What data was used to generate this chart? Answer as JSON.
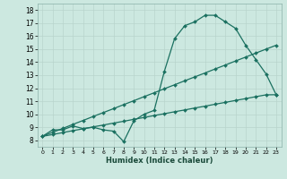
{
  "xlabel": "Humidex (Indice chaleur)",
  "bg_color": "#cce8e0",
  "grid_color": "#b8d4cc",
  "line_color": "#1a7060",
  "xlim": [
    -0.5,
    23.5
  ],
  "ylim": [
    7.5,
    18.5
  ],
  "xticks": [
    0,
    1,
    2,
    3,
    4,
    5,
    6,
    7,
    8,
    9,
    10,
    11,
    12,
    13,
    14,
    15,
    16,
    17,
    18,
    19,
    20,
    21,
    22,
    23
  ],
  "yticks": [
    8,
    9,
    10,
    11,
    12,
    13,
    14,
    15,
    16,
    17,
    18
  ],
  "line1_x": [
    0,
    1,
    2,
    3,
    4,
    5,
    6,
    7,
    8,
    9,
    10,
    11,
    12,
    13,
    14,
    15,
    16,
    17,
    18,
    19,
    20,
    21,
    22,
    23
  ],
  "line1_y": [
    8.3,
    8.8,
    8.8,
    9.1,
    8.9,
    9.0,
    8.8,
    8.7,
    7.9,
    9.5,
    10.0,
    10.3,
    13.3,
    15.8,
    16.8,
    17.1,
    17.6,
    17.6,
    17.1,
    16.6,
    15.3,
    14.2,
    13.1,
    11.5
  ],
  "line2_x": [
    0,
    1,
    2,
    3,
    4,
    5,
    6,
    7,
    8,
    9,
    10,
    11,
    12,
    13,
    14,
    15,
    16,
    17,
    18,
    19,
    20,
    21,
    22,
    23
  ],
  "line2_y": [
    8.3,
    8.61,
    8.91,
    9.22,
    9.52,
    9.83,
    10.13,
    10.43,
    10.74,
    11.04,
    11.35,
    11.65,
    11.96,
    12.26,
    12.57,
    12.87,
    13.17,
    13.48,
    13.78,
    14.09,
    14.39,
    14.7,
    15.0,
    15.3
  ],
  "line3_x": [
    0,
    1,
    2,
    3,
    4,
    5,
    6,
    7,
    8,
    9,
    10,
    11,
    12,
    13,
    14,
    15,
    16,
    17,
    18,
    19,
    20,
    21,
    22,
    23
  ],
  "line3_y": [
    8.3,
    8.44,
    8.59,
    8.74,
    8.88,
    9.03,
    9.17,
    9.32,
    9.46,
    9.61,
    9.75,
    9.9,
    10.04,
    10.19,
    10.33,
    10.48,
    10.62,
    10.77,
    10.91,
    11.06,
    11.2,
    11.35,
    11.49,
    11.5
  ],
  "ylabel_ticks_fontsize": 5.5,
  "xlabel_ticks_fontsize": 4.5,
  "xlabel_fontsize": 6.0,
  "linewidth": 0.9,
  "markersize": 2.0
}
